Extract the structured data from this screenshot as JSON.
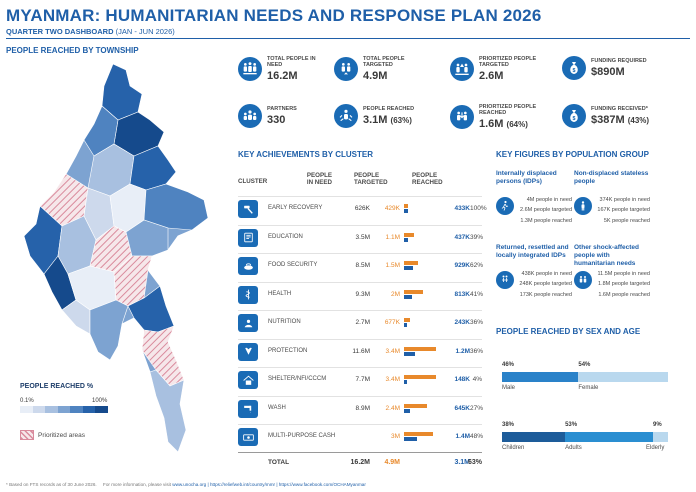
{
  "header": {
    "title": "MYANMAR: HUMANITARIAN NEEDS AND RESPONSE PLAN 2026",
    "subtitle_bold": "QUARTER TWO DASHBOARD",
    "subtitle_range": "(JAN - JUN 2026)"
  },
  "map": {
    "heading": "PEOPLE REACHED BY TOWNSHIP",
    "legend_title": "PEOPLE REACHED %",
    "legend_min": "0.1%",
    "legend_max": "100%",
    "legend_colors": [
      "#e8eef7",
      "#cdd9ec",
      "#a8c0e0",
      "#7da3d1",
      "#4f83c0",
      "#2662aa",
      "#154a8c"
    ],
    "prioritized_label": "Prioritized areas"
  },
  "kpis": [
    {
      "label": "TOTAL PEOPLE IN NEED",
      "value": "16.2M",
      "pct": "",
      "icon": "people-group-icon"
    },
    {
      "label": "TOTAL PEOPLE TARGETED",
      "value": "4.9M",
      "pct": "",
      "icon": "target-people-icon"
    },
    {
      "label": "PRIORTIZED PEOPLE TARGETED",
      "value": "2.6M",
      "pct": "",
      "icon": "priority-people-icon"
    },
    {
      "label": "FUNDING REQUIRED",
      "value": "$890M",
      "pct": "",
      "icon": "money-bag-icon"
    },
    {
      "label": "PARTNERS",
      "value": "330",
      "pct": "",
      "icon": "partners-icon"
    },
    {
      "label": "PEOPLE REACHED",
      "value": "3.1M",
      "pct": "(63%)",
      "icon": "people-reached-icon"
    },
    {
      "label": "PRIORTIZED PEOPLE REACHED",
      "value": "1.6M",
      "pct": "(64%)",
      "icon": "priority-reached-icon"
    },
    {
      "label": "FUNDING RECEIVED*",
      "value": "$387M",
      "pct": "(43%)",
      "icon": "money-received-icon"
    }
  ],
  "clusters": {
    "heading": "KEY ACHIEVEMENTS BY CLUSTER",
    "col_cluster": "CLUSTER",
    "col_pin_1": "PEOPLE",
    "col_pin_2": "IN NEED",
    "col_targeted_1": "PEOPLE",
    "col_targeted_2": "TARGETED",
    "col_reached_1": "PEOPLE",
    "col_reached_2": "REACHED",
    "rows": [
      {
        "name": "EARLY RECOVERY",
        "pin": "626K",
        "targeted": "429K",
        "reached": "433K",
        "pct": "100%",
        "t": 0.429,
        "r": 0.433,
        "icon": "hammer-icon"
      },
      {
        "name": "EDUCATION",
        "pin": "3.5M",
        "targeted": "1.1M",
        "reached": "437K",
        "pct": "39%",
        "t": 1.1,
        "r": 0.437,
        "icon": "book-icon"
      },
      {
        "name": "FOOD SECURITY",
        "pin": "8.5M",
        "targeted": "1.5M",
        "reached": "929K",
        "pct": "62%",
        "t": 1.5,
        "r": 0.929,
        "icon": "food-icon"
      },
      {
        "name": "HEALTH",
        "pin": "9.3M",
        "targeted": "2M",
        "reached": "813K",
        "pct": "41%",
        "t": 2.0,
        "r": 0.813,
        "icon": "health-icon"
      },
      {
        "name": "NUTRITION",
        "pin": "2.7M",
        "targeted": "677K",
        "reached": "243K",
        "pct": "36%",
        "t": 0.677,
        "r": 0.243,
        "icon": "nutrition-icon"
      },
      {
        "name": "PROTECTION",
        "pin": "11.6M",
        "targeted": "3.4M",
        "reached": "1.2M",
        "pct": "36%",
        "t": 3.4,
        "r": 1.2,
        "icon": "protection-icon"
      },
      {
        "name": "SHELTER/NFI/CCCM",
        "pin": "7.7M",
        "targeted": "3.4M",
        "reached": "148K",
        "pct": "4%",
        "t": 3.4,
        "r": 0.148,
        "icon": "shelter-icon"
      },
      {
        "name": "WASH",
        "pin": "8.9M",
        "targeted": "2.4M",
        "reached": "645K",
        "pct": "27%",
        "t": 2.4,
        "r": 0.645,
        "icon": "water-tap-icon"
      },
      {
        "name": "MULTI-PURPOSE CASH",
        "pin": "",
        "targeted": "3M",
        "reached": "1.4M",
        "pct": "48%",
        "t": 3.0,
        "r": 1.4,
        "icon": "cash-icon"
      }
    ],
    "total_label": "TOTAL",
    "total_pin": "16.2M",
    "total_targeted": "4.9M",
    "total_reached": "3.1M",
    "total_pct": "63%"
  },
  "key_figures": {
    "heading": "KEY FIGURES BY POPULATION GROUP",
    "groups": [
      {
        "title": "Internally displaced persons (IDPs)",
        "need": "4M people in need",
        "targeted": "2.6M people targeted",
        "reached": "1.3M people reached",
        "icon": "idp-icon"
      },
      {
        "title": "Non-displaced stateless people",
        "need": "374K people in need",
        "targeted": "167K people targeted",
        "reached": "5K people reached",
        "icon": "stateless-icon"
      },
      {
        "title": "Returned, resettled and locally integrated IDPs",
        "need": "438K people in need",
        "targeted": "248K people targeted",
        "reached": "173K people reached",
        "icon": "returnee-icon"
      },
      {
        "title": "Other shock-affected people with humanitarian needs",
        "need": "11.5M people in need",
        "targeted": "1.8M people targeted",
        "reached": "1.6M people reached",
        "icon": "shock-affected-icon"
      }
    ]
  },
  "sex_age": {
    "heading": "PEOPLE REACHED BY SEX AND AGE",
    "sex": [
      {
        "label": "Male",
        "pct": "46%",
        "value": 46,
        "color": "#2a82c9"
      },
      {
        "label": "Female",
        "pct": "54%",
        "value": 54,
        "color": "#b9d8ee"
      }
    ],
    "age": [
      {
        "label": "Children",
        "pct": "38%",
        "value": 38,
        "color": "#1d5c9a"
      },
      {
        "label": "Adults",
        "pct": "53%",
        "value": 53,
        "color": "#2a8ed1"
      },
      {
        "label": "Elderly",
        "pct": "9%",
        "value": 9,
        "color": "#b9d8ee"
      }
    ]
  },
  "footer": {
    "note": "* Based on FTS records as of 30 June 2026.",
    "more_info": "For more information, please visit",
    "links": "www.unocha.org | https://reliefweb.int/country/mmr | https://www.facebook.com/OCHAMyanmar"
  }
}
